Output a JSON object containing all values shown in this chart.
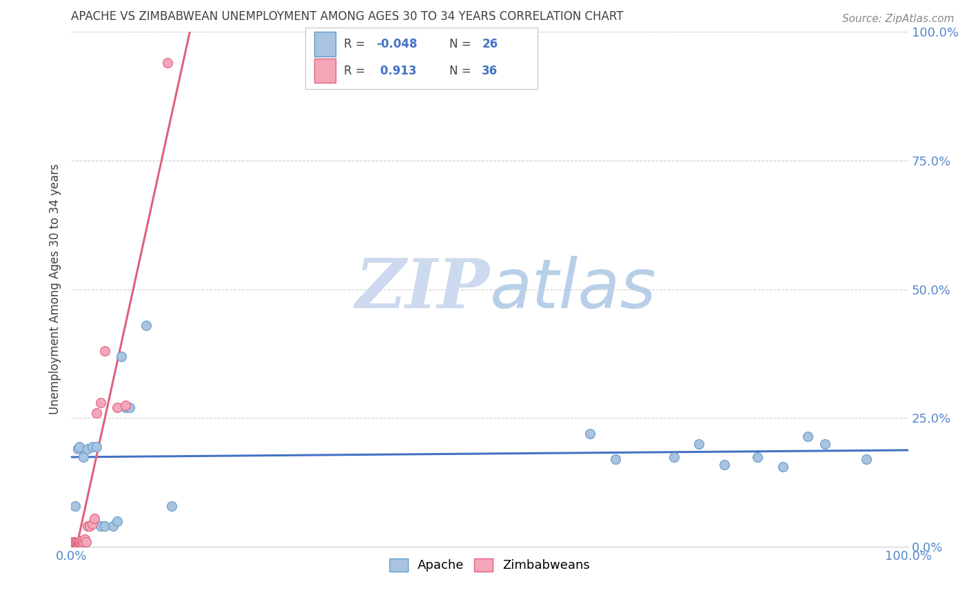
{
  "title": "APACHE VS ZIMBABWEAN UNEMPLOYMENT AMONG AGES 30 TO 34 YEARS CORRELATION CHART",
  "source": "Source: ZipAtlas.com",
  "ylabel": "Unemployment Among Ages 30 to 34 years",
  "xlim": [
    0,
    1.0
  ],
  "ylim": [
    0,
    1.0
  ],
  "xticks": [
    0.0,
    0.25,
    0.5,
    0.75,
    1.0
  ],
  "xtick_labels": [
    "0.0%",
    "",
    "",
    "",
    "100.0%"
  ],
  "yticks": [
    0.0,
    0.25,
    0.5,
    0.75,
    1.0
  ],
  "ytick_labels": [
    "0.0%",
    "25.0%",
    "50.0%",
    "75.0%",
    "100.0%"
  ],
  "apache_color": "#a8c4e0",
  "apache_edge_color": "#6699cc",
  "zimbabwean_color": "#f4a7b9",
  "zimbabwean_edge_color": "#e06080",
  "trend_apache_color": "#4472c4",
  "trend_zimbabwean_color": "#e0607a",
  "background_color": "#ffffff",
  "grid_color": "#cccccc",
  "title_color": "#404040",
  "axis_tick_color": "#5588cc",
  "watermark_color": "#d0dff0",
  "legend_R_color": "#4472c4",
  "legend_text_color": "#404040",
  "apache_R": -0.048,
  "apache_N": 26,
  "zimbabwean_R": 0.913,
  "zimbabwean_N": 36,
  "apache_x": [
    0.005,
    0.008,
    0.01,
    0.015,
    0.02,
    0.025,
    0.03,
    0.035,
    0.04,
    0.05,
    0.055,
    0.06,
    0.065,
    0.07,
    0.09,
    0.12,
    0.62,
    0.65,
    0.72,
    0.75,
    0.78,
    0.82,
    0.85,
    0.88,
    0.9,
    0.95
  ],
  "apache_y": [
    0.08,
    0.19,
    0.195,
    0.175,
    0.19,
    0.195,
    0.195,
    0.04,
    0.04,
    0.04,
    0.05,
    0.37,
    0.27,
    0.27,
    0.43,
    0.08,
    0.22,
    0.17,
    0.175,
    0.2,
    0.16,
    0.175,
    0.155,
    0.215,
    0.2,
    0.17
  ],
  "zimbabwean_x": [
    0.001,
    0.001,
    0.002,
    0.002,
    0.002,
    0.003,
    0.003,
    0.003,
    0.003,
    0.004,
    0.004,
    0.005,
    0.005,
    0.006,
    0.006,
    0.007,
    0.007,
    0.008,
    0.009,
    0.01,
    0.011,
    0.012,
    0.013,
    0.015,
    0.016,
    0.018,
    0.02,
    0.022,
    0.025,
    0.028,
    0.03,
    0.035,
    0.04,
    0.055,
    0.065,
    0.115
  ],
  "zimbabwean_y": [
    0.01,
    0.005,
    0.005,
    0.006,
    0.007,
    0.005,
    0.006,
    0.007,
    0.01,
    0.005,
    0.007,
    0.005,
    0.008,
    0.006,
    0.007,
    0.005,
    0.008,
    0.005,
    0.007,
    0.008,
    0.01,
    0.008,
    0.012,
    0.01,
    0.015,
    0.01,
    0.04,
    0.04,
    0.045,
    0.055,
    0.26,
    0.28,
    0.38,
    0.27,
    0.275,
    0.94
  ],
  "marker_size": 100
}
